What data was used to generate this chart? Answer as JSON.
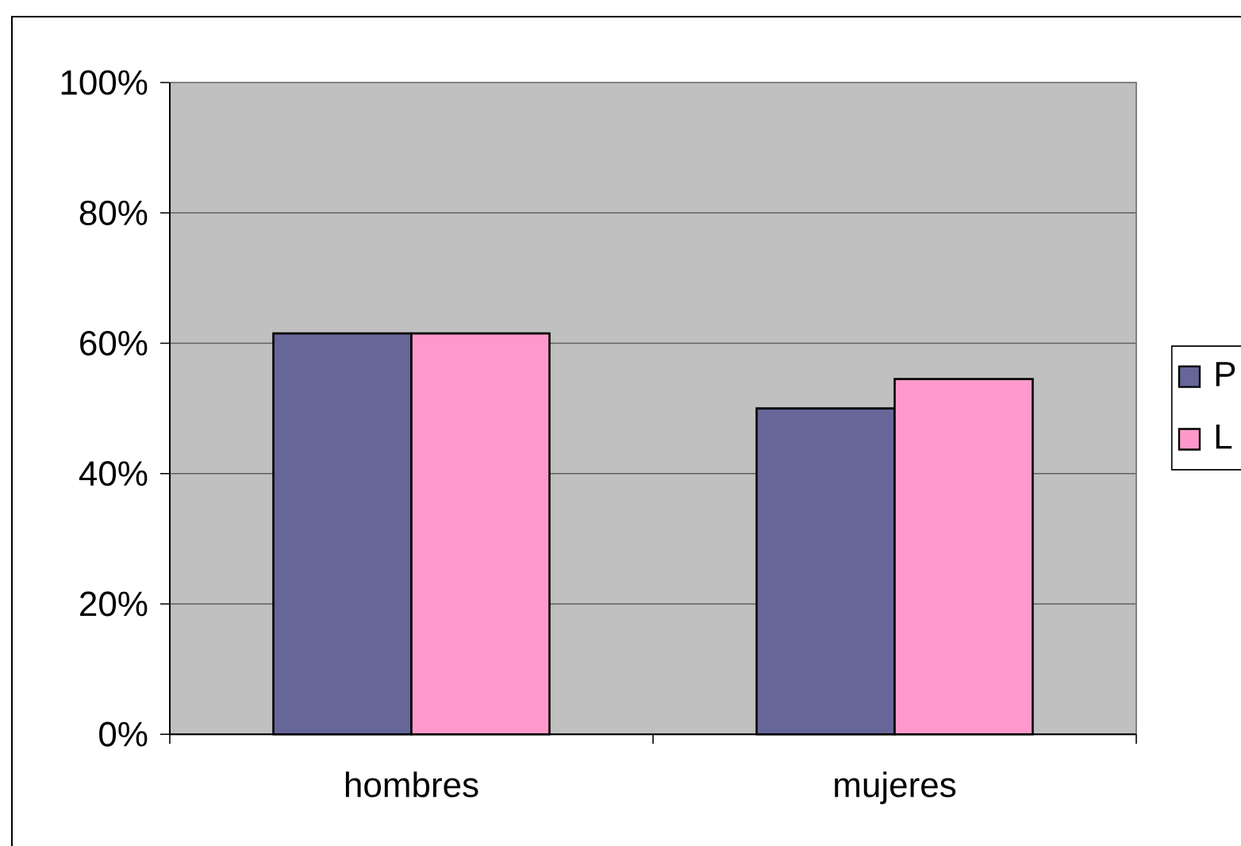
{
  "chart_data": {
    "type": "bar",
    "categories": [
      "hombres",
      "mujeres"
    ],
    "series": [
      {
        "name": "P",
        "color": "#666699",
        "values": [
          61.5,
          50
        ]
      },
      {
        "name": "L",
        "color": "#ff99cc",
        "values": [
          61.5,
          54.5
        ]
      }
    ],
    "ylim": [
      0,
      100
    ],
    "yticks": [
      {
        "value": 0,
        "label": "0%"
      },
      {
        "value": 20,
        "label": "20%"
      },
      {
        "value": 40,
        "label": "40%"
      },
      {
        "value": 60,
        "label": "60%"
      },
      {
        "value": 80,
        "label": "80%"
      },
      {
        "value": 100,
        "label": "100%"
      }
    ],
    "grid": "y",
    "legend": "right"
  }
}
